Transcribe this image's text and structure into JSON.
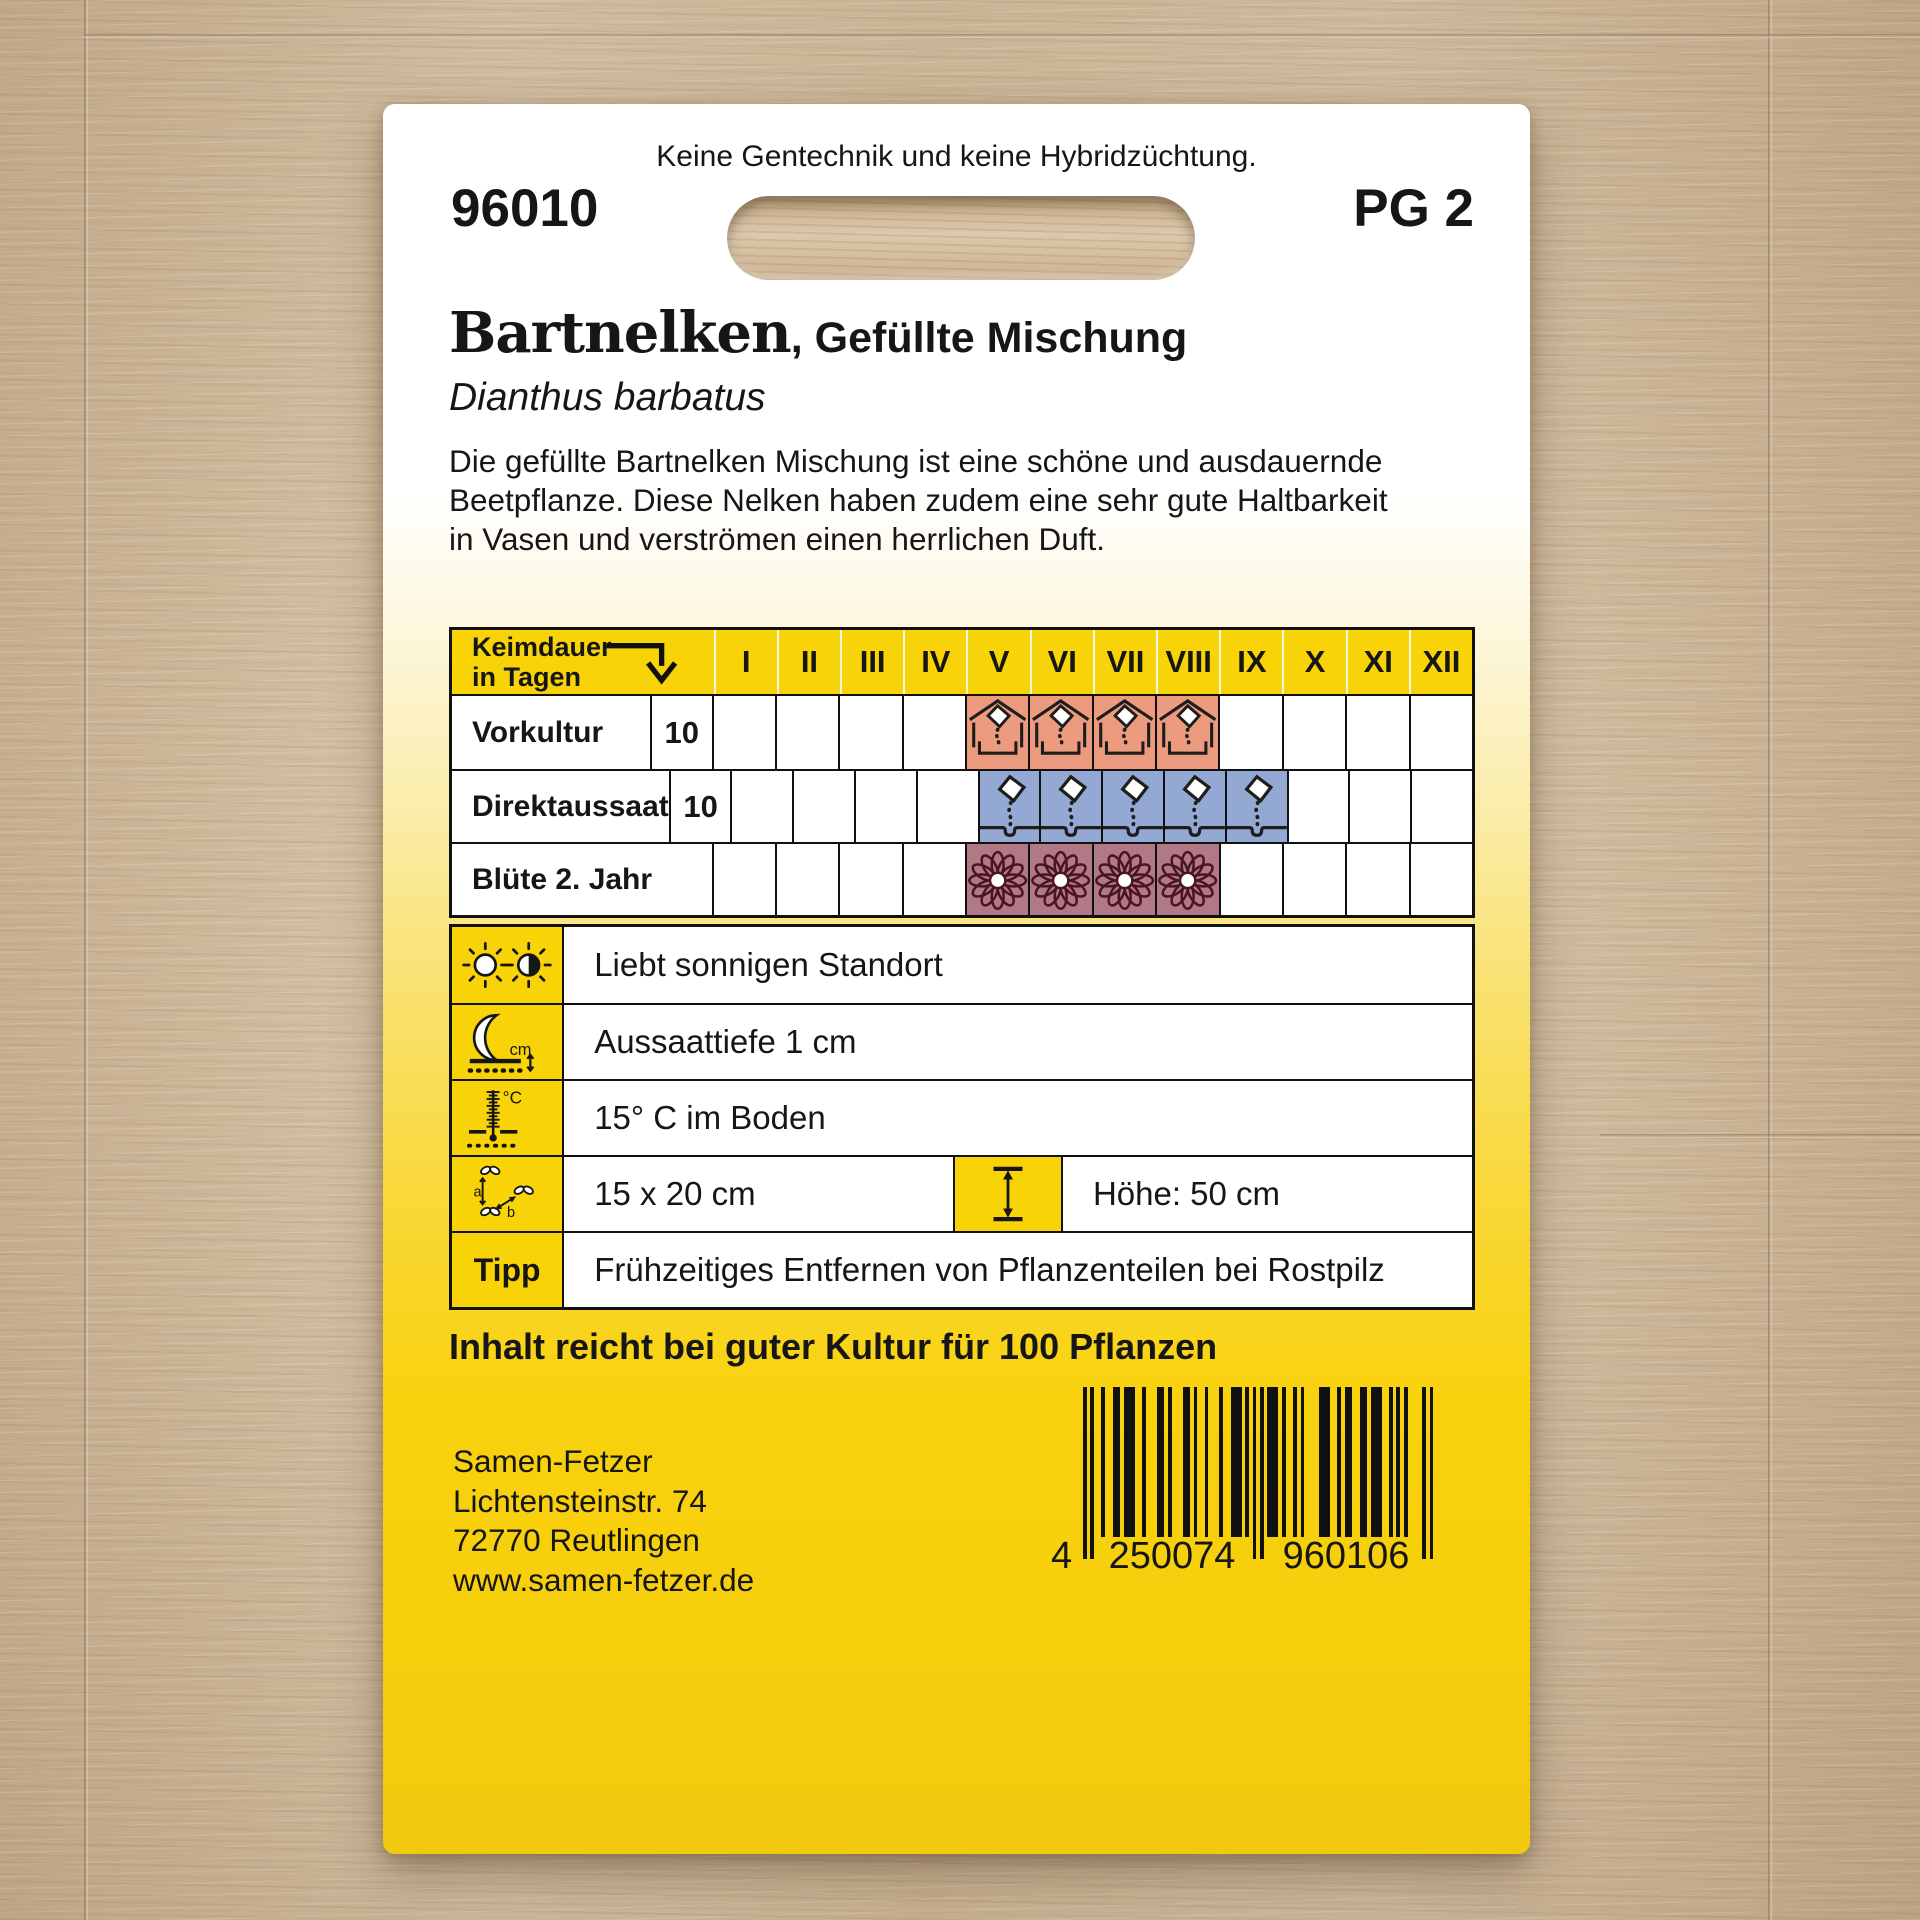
{
  "packet": {
    "top_note": "Keine Gentechnik und keine Hybridzüchtung.",
    "article_number": "96010",
    "price_group": "PG 2",
    "product_name": "Bartnelken",
    "variety_suffix": ", Gefüllte Mischung",
    "botanical_name": "Dianthus barbatus",
    "description": "Die gefüllte Bartnelken Mischung ist eine schöne und ausdauernde\nBeetpflanze. Diese Nelken haben zudem eine sehr gute Haltbarkeit\nin Vasen und verströmen einen herrlichen Duft.",
    "content_note": "Inhalt reicht bei guter Kultur für 100 Pflanzen"
  },
  "calendar": {
    "header_label": "Keimdauer\nin Tagen",
    "header_arrow_icon": "germination-duration-arrow-icon",
    "months": [
      "I",
      "II",
      "III",
      "IV",
      "V",
      "VI",
      "VII",
      "VIII",
      "IX",
      "X",
      "XI",
      "XII"
    ],
    "rows": [
      {
        "label": "Vorkultur",
        "value": "10",
        "icon": "greenhouse-sowing-icon",
        "cell_color": "#EC9B7E",
        "active_months": [
          "V",
          "VI",
          "VII",
          "VIII"
        ]
      },
      {
        "label": "Direktaussaat",
        "value": "10",
        "icon": "direct-sowing-seed-icon",
        "cell_color": "#94A8D4",
        "active_months": [
          "V",
          "VI",
          "VII",
          "VIII",
          "IX"
        ]
      },
      {
        "label": "Blüte 2. Jahr",
        "value": null,
        "icon": "flower-bloom-icon",
        "cell_color": "#B17986",
        "active_months": [
          "V",
          "VI",
          "VII",
          "VIII"
        ]
      }
    ]
  },
  "info_rows": [
    {
      "icon": "sun-exposure-icon",
      "text": "Liebt sonnigen Standort"
    },
    {
      "icon": "sowing-depth-icon",
      "text": "Aussaattiefe 1 cm"
    },
    {
      "icon": "soil-temperature-icon",
      "text": "15° C im Boden"
    },
    {
      "icon": "plant-spacing-icon",
      "text": "15 x 20 cm",
      "icon2": "plant-height-icon",
      "text2": "Höhe: 50 cm"
    },
    {
      "label": "Tipp",
      "text": "Frühzeitiges Entfernen von Pflanzenteilen bei Rostpilz"
    }
  ],
  "footer": {
    "address_lines": [
      "Samen-Fetzer",
      "Lichtensteinstr. 74",
      "72770 Reutlingen",
      "www.samen-fetzer.de"
    ],
    "barcode": {
      "digit_prefix": "4",
      "digits_left": "250074",
      "digits_right": "960106",
      "modules": "10100100110111001000110100011010010001001110101010111010010100001110010110011011100101010000101"
    }
  },
  "colors": {
    "accent_gold": "#F7D308",
    "vorkultur_cell": "#EC9B7E",
    "direktaussaat_cell": "#94A8D4",
    "bluete_cell": "#B17986",
    "packet_bottom_yellow": "#F6CE0B"
  }
}
